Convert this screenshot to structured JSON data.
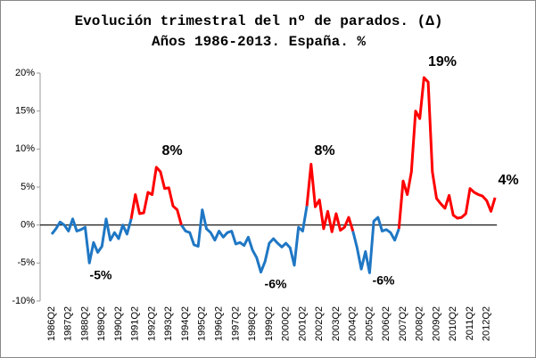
{
  "chart_data": {
    "type": "line",
    "title": "Evolución trimestral del nº de parados. (Δ)",
    "subtitle": "Años 1986-2013. España. %",
    "categories": [
      "1986Q2",
      null,
      null,
      null,
      "1987Q2",
      null,
      null,
      null,
      "1988Q2",
      null,
      null,
      null,
      "1989Q2",
      null,
      null,
      null,
      "1990Q2",
      null,
      null,
      null,
      "1991Q2",
      null,
      null,
      null,
      "1992Q2",
      null,
      null,
      null,
      "1993Q2",
      null,
      null,
      null,
      "1994Q2",
      null,
      null,
      null,
      "1995Q2",
      null,
      null,
      null,
      "1996Q2",
      null,
      null,
      null,
      "1997Q2",
      null,
      null,
      null,
      "1998Q2",
      null,
      null,
      null,
      "1999Q2",
      null,
      null,
      null,
      "2000Q2",
      null,
      null,
      null,
      "2001Q2",
      null,
      null,
      null,
      "2002Q2",
      null,
      null,
      null,
      "2003Q2",
      null,
      null,
      null,
      "2004Q2",
      null,
      null,
      null,
      "2005Q2",
      null,
      null,
      null,
      "2006Q2",
      null,
      null,
      null,
      "2007Q2",
      null,
      null,
      null,
      "2008Q2",
      null,
      null,
      null,
      "2009Q2",
      null,
      null,
      null,
      "2010Q2",
      null,
      null,
      null,
      "2011Q2",
      null,
      null,
      null,
      "2012Q2",
      null,
      null
    ],
    "series": [
      {
        "color": "#1f77c4",
        "values": [
          -1.2,
          -0.5,
          0.4,
          0,
          -0.8,
          0.8,
          -0.8,
          -0.6,
          -0.3,
          -5.0,
          -2.3,
          -3.6,
          -2.8,
          0.8,
          -2.0,
          -1.0,
          -1.8,
          0,
          -1.2,
          0.8,
          null,
          null,
          null,
          null,
          null,
          null,
          null,
          null,
          null,
          null,
          null,
          0,
          -0.8,
          -1.0,
          -2.6,
          -2.8,
          2.0,
          -0.5,
          -1.0,
          -2.0,
          -0.8,
          -1.6,
          -1.0,
          -0.8,
          -2.5,
          -2.3,
          -2.7,
          -1.6,
          -3.3,
          -4.3,
          -6.2,
          -4.8,
          -2.4,
          -1.8,
          -2.4,
          -2.9,
          -2.4,
          -3.0,
          -5.3,
          -0.3,
          -0.8,
          2.5,
          null,
          null,
          null,
          null,
          null,
          null,
          null,
          null,
          null,
          null,
          -0.8,
          -3.0,
          -5.8,
          -3.5,
          -6.3,
          0.5,
          1.0,
          -0.8,
          -0.6,
          -1.0,
          -2.0,
          -0.5,
          null,
          null,
          null,
          null,
          null,
          null,
          null,
          null,
          null,
          null,
          null,
          null,
          null,
          null,
          null,
          null,
          null,
          null,
          null,
          null,
          null,
          null,
          null
        ]
      },
      {
        "color": "#ff0000",
        "values": [
          null,
          null,
          null,
          null,
          null,
          null,
          null,
          null,
          null,
          null,
          null,
          null,
          null,
          null,
          null,
          null,
          null,
          null,
          null,
          0.8,
          4.0,
          1.5,
          1.6,
          4.3,
          4.0,
          7.6,
          7.0,
          4.8,
          4.9,
          2.5,
          2.0,
          0,
          null,
          null,
          null,
          null,
          null,
          null,
          null,
          null,
          null,
          null,
          null,
          null,
          null,
          null,
          null,
          null,
          null,
          null,
          null,
          null,
          null,
          null,
          null,
          null,
          null,
          null,
          null,
          null,
          null,
          2.5,
          8.0,
          2.4,
          3.3,
          -0.5,
          1.8,
          -0.9,
          1.5,
          -0.7,
          -0.3,
          1.0,
          -0.8,
          null,
          null,
          null,
          null,
          null,
          null,
          null,
          null,
          null,
          null,
          -0.5,
          5.8,
          4.0,
          7.0,
          15.0,
          14.0,
          19.4,
          18.8,
          7.0,
          3.5,
          2.8,
          2.2,
          3.9,
          1.3,
          0.9,
          1.0,
          1.5,
          4.8,
          4.3,
          4.0,
          3.8,
          3.2,
          1.8,
          3.6
        ]
      }
    ],
    "ylim": [
      -10,
      20
    ],
    "yticks": [
      {
        "value": -10,
        "label": "-10%"
      },
      {
        "value": -5,
        "label": "-5%"
      },
      {
        "value": 0,
        "label": "0%"
      },
      {
        "value": 5,
        "label": "5%"
      },
      {
        "value": 10,
        "label": "10%"
      },
      {
        "value": 15,
        "label": "15%"
      },
      {
        "value": 20,
        "label": "20%"
      }
    ],
    "annotations": [
      "-5%",
      "8%",
      "-6%",
      "8%",
      "-6%",
      "19%",
      "4%"
    ],
    "grid": false
  }
}
